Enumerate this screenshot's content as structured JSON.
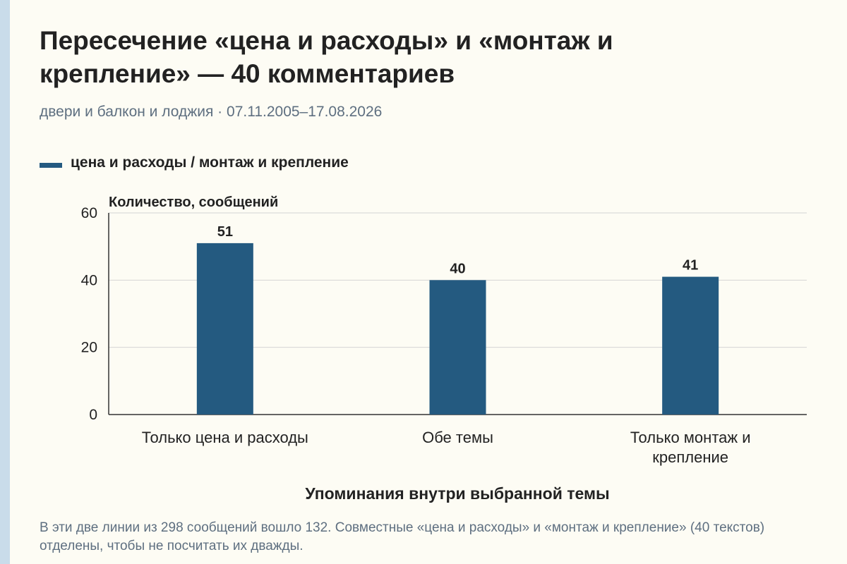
{
  "header": {
    "title": "Пересечение «цена и расходы» и «монтаж и крепление» — 40 комментариев",
    "subtitle": "двери и балкон и лоджия · 07.11.2005–17.08.2026"
  },
  "footnote": "В эти две линии из 298 сообщений вошло 132. Совместные «цена и расходы» и «монтаж и крепление» (40 текстов) отделены, чтобы не посчитать их дважды.",
  "colors": {
    "bar": "#245a80",
    "grid": "#d4d4d4",
    "axis": "#333333",
    "background": "#fdfcf4"
  },
  "chart_data": {
    "type": "bar",
    "categories": [
      [
        "Только цена и расходы"
      ],
      [
        "Обе темы"
      ],
      [
        "Только монтаж и",
        "крепление"
      ]
    ],
    "series": [
      {
        "name": "цена и расходы / монтаж и крепление",
        "values": [
          51,
          40,
          41
        ]
      }
    ],
    "ylabel": "Количество, сообщений",
    "xlabel": "Упоминания внутри выбранной темы",
    "ylim": [
      0,
      60
    ],
    "yticks": [
      0,
      20,
      40,
      60
    ],
    "grid": true,
    "legend_position": "top-left"
  }
}
